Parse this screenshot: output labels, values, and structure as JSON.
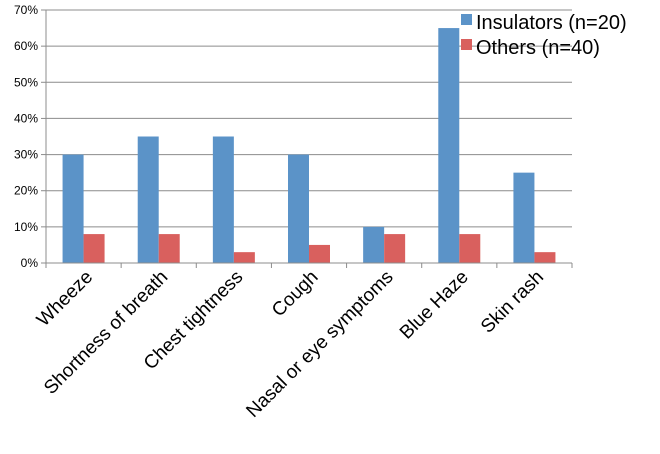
{
  "chart_data": {
    "type": "bar",
    "categories": [
      "Wheeze",
      "Shortness of breath",
      "Chest tightness",
      "Cough",
      "Nasal or eye symptoms",
      "Blue Haze",
      "Skin rash"
    ],
    "series": [
      {
        "name": "Insulators (n=20)",
        "color": "#5b93c8",
        "values": [
          30,
          35,
          35,
          30,
          10,
          65,
          25
        ]
      },
      {
        "name": "Others (n=40)",
        "color": "#d9605e",
        "values": [
          8,
          8,
          3,
          5,
          8,
          8,
          3
        ]
      }
    ],
    "ylim": [
      0,
      70
    ],
    "yticks": [
      "0%",
      "10%",
      "20%",
      "30%",
      "40%",
      "50%",
      "60%",
      "70%"
    ],
    "grid": true,
    "legend_position": "top-right",
    "title": "",
    "xlabel": "",
    "ylabel": ""
  }
}
